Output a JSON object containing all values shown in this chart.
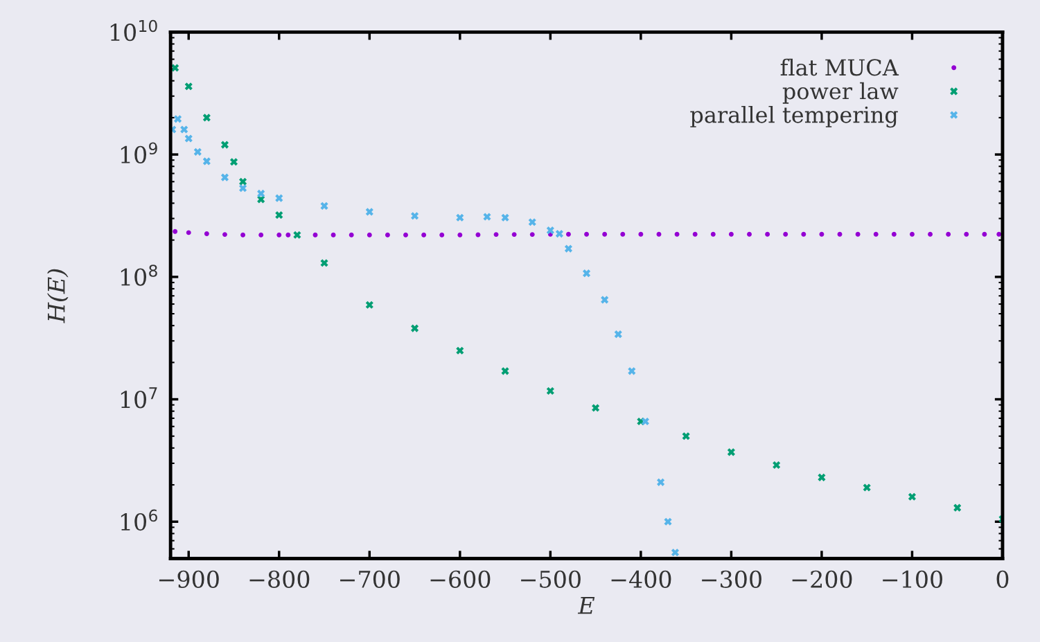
{
  "chart_data": {
    "type": "scatter",
    "xlabel": "E",
    "ylabel": "H(E)",
    "log": "y",
    "grid": false,
    "legend": "top right",
    "xlim": [
      -920,
      0
    ],
    "ylim": [
      500000,
      10000000000
    ],
    "xticks": [
      {
        "value": -900,
        "label": "−900"
      },
      {
        "value": -800,
        "label": "−800"
      },
      {
        "value": -700,
        "label": "−700"
      },
      {
        "value": -600,
        "label": "−600"
      },
      {
        "value": -500,
        "label": "−500"
      },
      {
        "value": -400,
        "label": "−400"
      },
      {
        "value": -300,
        "label": "−300"
      },
      {
        "value": -200,
        "label": "−200"
      },
      {
        "value": -100,
        "label": "−100"
      },
      0
    ],
    "yticks": [
      {
        "value": 1000000,
        "label": "10$^{6}$"
      },
      {
        "value": 10000000,
        "label": "10$^{7}$"
      },
      {
        "value": 100000000,
        "label": "10$^{8}$"
      },
      {
        "value": 1000000000,
        "label": "10$^{9}$"
      },
      {
        "value": 10000000000,
        "label": "10$^{10}$"
      }
    ],
    "series": [
      {
        "name": "flat MUCA",
        "color": "#9400d3",
        "marker": "circle",
        "x": [
          -915,
          -900,
          -880,
          -860,
          -840,
          -820,
          -800,
          -790,
          -760,
          -740,
          -720,
          -700,
          -680,
          -660,
          -640,
          -620,
          -600,
          -580,
          -560,
          -540,
          -520,
          -500,
          -480,
          -460,
          -440,
          -420,
          -400,
          -380,
          -360,
          -340,
          -320,
          -300,
          -280,
          -260,
          -240,
          -220,
          -200,
          -180,
          -160,
          -140,
          -120,
          -100,
          -80,
          -60,
          -40,
          -20,
          -4
        ],
        "values": [
          235000000,
          230000000,
          225000000,
          222000000,
          220000000,
          220000000,
          220000000,
          220000000,
          220000000,
          220000000,
          220000000,
          220000000,
          220000000,
          220000000,
          220000000,
          220000000,
          220000000,
          221000000,
          222000000,
          222000000,
          222000000,
          223000000,
          223000000,
          223000000,
          223000000,
          223000000,
          223000000,
          223000000,
          223000000,
          223000000,
          223000000,
          223000000,
          223000000,
          223000000,
          223000000,
          223000000,
          223000000,
          223000000,
          223000000,
          223000000,
          223000000,
          223000000,
          223000000,
          223000000,
          223000000,
          223000000,
          223000000
        ]
      },
      {
        "name": "power law",
        "color": "#009e73",
        "marker": "cross",
        "x": [
          -915,
          -900,
          -880,
          -860,
          -850,
          -840,
          -820,
          -800,
          -780,
          -750,
          -700,
          -650,
          -600,
          -550,
          -500,
          -450,
          -400,
          -350,
          -300,
          -250,
          -200,
          -150,
          -100,
          -50,
          0
        ],
        "values": [
          5100000000,
          3600000000,
          2000000000,
          1200000000,
          870000000,
          600000000,
          430000000,
          320000000,
          220000000,
          130000000,
          59000000,
          38000000,
          25000000,
          17000000,
          11700000,
          8500000,
          6600000,
          5000000,
          3700000,
          2900000,
          2300000,
          1900000,
          1600000,
          1300000,
          1050000
        ]
      },
      {
        "name": "parallel tempering",
        "color": "#56b4e9",
        "marker": "cross",
        "x": [
          -918,
          -912,
          -905,
          -900,
          -890,
          -880,
          -860,
          -840,
          -820,
          -800,
          -750,
          -700,
          -650,
          -600,
          -570,
          -550,
          -520,
          -500,
          -490,
          -480,
          -460,
          -440,
          -425,
          -410,
          -395,
          -378,
          -370,
          -362
        ],
        "values": [
          1600000000,
          1950000000,
          1600000000,
          1350000000,
          1050000000,
          880000000,
          650000000,
          530000000,
          480000000,
          440000000,
          380000000,
          340000000,
          315000000,
          305000000,
          310000000,
          305000000,
          280000000,
          240000000,
          225000000,
          170000000,
          107000000,
          65000000,
          34000000,
          17000000,
          6600000,
          2100000,
          1000000,
          560000
        ]
      }
    ]
  }
}
